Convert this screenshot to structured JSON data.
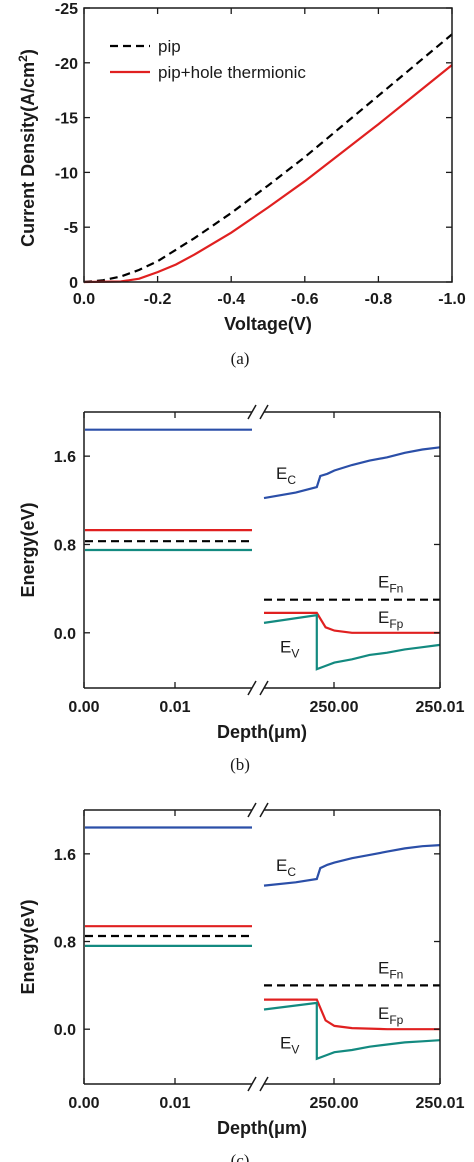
{
  "colors": {
    "pip": "#000000",
    "thermionic": "#e02020",
    "ec": "#2b4fa8",
    "ef": "#e02020",
    "ev": "#138a80",
    "efn": "#000000"
  },
  "chart_data": [
    {
      "type": "line",
      "title": "",
      "xlabel": "Voltage(V)",
      "ylabel": "Current Density(A/cm²)",
      "ylabel_parts": {
        "main": "Current Density(A/cm",
        "sup": "2",
        "tail": ")"
      },
      "caption": "(a)",
      "xlim": [
        0.0,
        -1.0
      ],
      "ylim": [
        0,
        -25
      ],
      "xticks": [
        0.0,
        -0.2,
        -0.4,
        -0.6,
        -0.8,
        -1.0
      ],
      "xtick_labels": [
        "0.0",
        "-0.2",
        "-0.4",
        "-0.6",
        "-0.8",
        "-1.0"
      ],
      "yticks": [
        0,
        -5,
        -10,
        -15,
        -20,
        -25
      ],
      "ytick_labels": [
        "0",
        "-5",
        "-10",
        "-15",
        "-20",
        "-25"
      ],
      "legend_position": "top-left",
      "series": [
        {
          "name": "pip",
          "style": "dashed",
          "color": "#000000",
          "x": [
            0.0,
            -0.05,
            -0.1,
            -0.15,
            -0.2,
            -0.3,
            -0.4,
            -0.5,
            -0.6,
            -0.7,
            -0.8,
            -0.9,
            -1.0
          ],
          "y": [
            0,
            -0.15,
            -0.5,
            -1.1,
            -1.9,
            -4.0,
            -6.3,
            -8.8,
            -11.4,
            -14.2,
            -17.0,
            -19.8,
            -22.6
          ]
        },
        {
          "name": "pip+hole thermionic",
          "style": "solid",
          "color": "#e02020",
          "x": [
            0.0,
            -0.1,
            -0.15,
            -0.2,
            -0.25,
            -0.3,
            -0.4,
            -0.5,
            -0.6,
            -0.7,
            -0.8,
            -0.9,
            -1.0
          ],
          "y": [
            0,
            -0.05,
            -0.3,
            -0.9,
            -1.6,
            -2.5,
            -4.5,
            -6.8,
            -9.2,
            -11.8,
            -14.4,
            -17.1,
            -19.8
          ]
        }
      ]
    },
    {
      "type": "line",
      "title": "",
      "xlabel": "Depth(μm)",
      "ylabel": "Energy(eV)",
      "caption": "(b)",
      "xtick_labels": [
        "0.00",
        "0.01",
        "250.00",
        "250.01"
      ],
      "yticks": [
        0.0,
        0.8,
        1.6
      ],
      "ytick_labels": [
        "0.0",
        "0.8",
        "1.6"
      ],
      "ylim": [
        -0.5,
        2.0
      ],
      "broken_axis": true,
      "band_labels": {
        "ec": {
          "main": "E",
          "sub": "C"
        },
        "efn": {
          "main": "E",
          "sub": "Fn"
        },
        "efp": {
          "main": "E",
          "sub": "Fp"
        },
        "ev": {
          "main": "E",
          "sub": "V"
        }
      },
      "left_levels": {
        "ec": 1.84,
        "ef": 0.93,
        "dashed": 0.83,
        "ev": 0.75
      },
      "efn_level": 0.3,
      "ec_right": {
        "x": [
          0,
          0.18,
          0.3,
          0.32,
          0.36,
          0.4,
          0.5,
          0.6,
          0.7,
          0.8,
          0.9,
          1.0
        ],
        "y": [
          1.22,
          1.27,
          1.32,
          1.42,
          1.44,
          1.47,
          1.52,
          1.56,
          1.59,
          1.63,
          1.66,
          1.68
        ]
      },
      "ef_right": {
        "x": [
          0,
          0.3,
          0.35,
          0.4,
          0.5,
          0.7,
          1.0
        ],
        "y": [
          0.18,
          0.18,
          0.05,
          0.02,
          0.0,
          0.0,
          0.0
        ]
      },
      "ev_right": {
        "x": [
          0,
          0.3,
          0.3,
          0.35,
          0.4,
          0.5,
          0.6,
          0.7,
          0.8,
          0.9,
          1.0
        ],
        "y": [
          0.09,
          0.16,
          -0.33,
          -0.3,
          -0.27,
          -0.24,
          -0.2,
          -0.18,
          -0.15,
          -0.13,
          -0.11
        ]
      }
    },
    {
      "type": "line",
      "title": "",
      "xlabel": "Depth(μm)",
      "ylabel": "Energy(eV)",
      "caption": "(c)",
      "xtick_labels": [
        "0.00",
        "0.01",
        "250.00",
        "250.01"
      ],
      "yticks": [
        0.0,
        0.8,
        1.6
      ],
      "ytick_labels": [
        "0.0",
        "0.8",
        "1.6"
      ],
      "ylim": [
        -0.5,
        2.0
      ],
      "broken_axis": true,
      "band_labels": {
        "ec": {
          "main": "E",
          "sub": "C"
        },
        "efn": {
          "main": "E",
          "sub": "Fn"
        },
        "efp": {
          "main": "E",
          "sub": "Fp"
        },
        "ev": {
          "main": "E",
          "sub": "V"
        }
      },
      "left_levels": {
        "ec": 1.84,
        "ef": 0.94,
        "dashed": 0.85,
        "ev": 0.76
      },
      "efn_level": 0.4,
      "ec_right": {
        "x": [
          0,
          0.18,
          0.3,
          0.32,
          0.36,
          0.4,
          0.5,
          0.6,
          0.7,
          0.8,
          0.9,
          1.0
        ],
        "y": [
          1.31,
          1.34,
          1.37,
          1.47,
          1.5,
          1.52,
          1.56,
          1.59,
          1.62,
          1.65,
          1.67,
          1.68
        ]
      },
      "ef_right": {
        "x": [
          0,
          0.3,
          0.35,
          0.4,
          0.5,
          0.7,
          1.0
        ],
        "y": [
          0.27,
          0.27,
          0.08,
          0.03,
          0.01,
          0.0,
          0.0
        ]
      },
      "ev_right": {
        "x": [
          0,
          0.3,
          0.3,
          0.35,
          0.4,
          0.5,
          0.6,
          0.7,
          0.8,
          0.9,
          1.0
        ],
        "y": [
          0.18,
          0.24,
          -0.27,
          -0.24,
          -0.21,
          -0.19,
          -0.16,
          -0.14,
          -0.12,
          -0.11,
          -0.1
        ]
      }
    }
  ]
}
